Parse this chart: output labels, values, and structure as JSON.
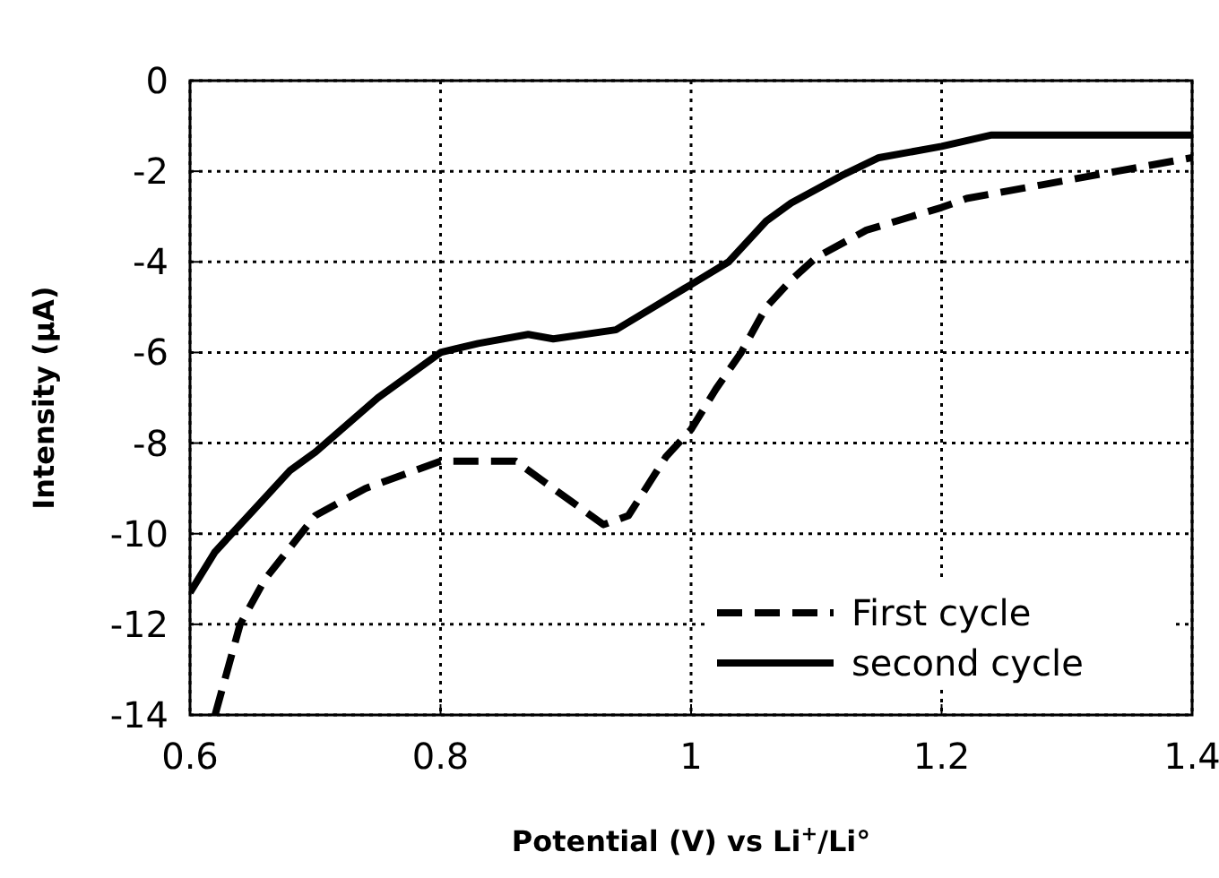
{
  "chart_data": {
    "type": "line",
    "xlabel": "Potential (V) vs Li$^{+}$/Li°",
    "ylabel": "Intensity (μA)",
    "xlim": [
      0.6,
      1.4
    ],
    "xticks": [
      0.6,
      0.8,
      1,
      1.2,
      1.4
    ],
    "ylim": [
      -14,
      0
    ],
    "yticks": [
      -14,
      -12,
      -10,
      -8,
      -6,
      -4,
      -2,
      0
    ],
    "grid": true,
    "legend": "bottom right",
    "series": [
      {
        "name": "First cycle",
        "color": "#000000",
        "line_style": "dashed",
        "x": [
          0.62,
          0.64,
          0.66,
          0.68,
          0.7,
          0.74,
          0.78,
          0.8,
          0.86,
          0.9,
          0.93,
          0.95,
          0.98,
          1.0,
          1.02,
          1.04,
          1.06,
          1.08,
          1.1,
          1.14,
          1.2,
          1.22,
          1.28,
          1.34,
          1.4
        ],
        "values": [
          -14,
          -12,
          -11,
          -10.3,
          -9.6,
          -9.0,
          -8.6,
          -8.4,
          -8.4,
          -9.2,
          -9.8,
          -9.6,
          -8.3,
          -7.7,
          -6.8,
          -6.0,
          -5.0,
          -4.4,
          -3.9,
          -3.3,
          -2.8,
          -2.6,
          -2.3,
          -2.0,
          -1.7
        ]
      },
      {
        "name": "second cycle",
        "color": "#000000",
        "line_style": "solid",
        "x": [
          0.6,
          0.62,
          0.65,
          0.68,
          0.7,
          0.75,
          0.8,
          0.83,
          0.87,
          0.89,
          0.94,
          0.97,
          1.0,
          1.03,
          1.06,
          1.08,
          1.12,
          1.15,
          1.2,
          1.24,
          1.3,
          1.4
        ],
        "values": [
          -11.3,
          -10.4,
          -9.5,
          -8.6,
          -8.2,
          -7.0,
          -6.0,
          -5.8,
          -5.6,
          -5.7,
          -5.5,
          -5.0,
          -4.5,
          -4.0,
          -3.1,
          -2.7,
          -2.1,
          -1.7,
          -1.45,
          -1.2,
          -1.2,
          -1.2
        ]
      }
    ]
  }
}
